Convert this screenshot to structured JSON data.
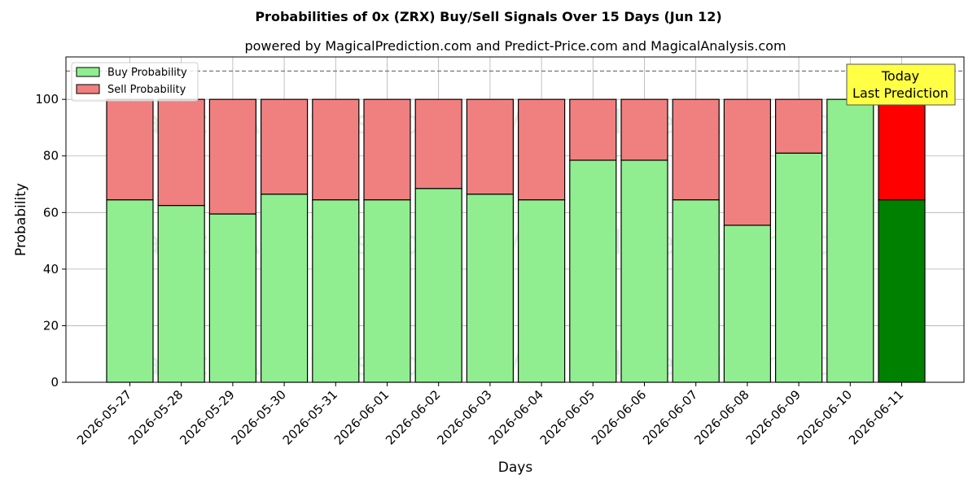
{
  "chart_data": {
    "type": "bar",
    "stacked": true,
    "title": "Probabilities of 0x (ZRX) Buy/Sell Signals Over 15 Days (Jun 12)",
    "subtitle": "powered by MagicalPrediction.com and Predict-Price.com and MagicalAnalysis.com",
    "xlabel": "Days",
    "ylabel": "Probability",
    "ylim": [
      0,
      115
    ],
    "yticks": [
      0,
      20,
      40,
      60,
      80,
      100
    ],
    "grid": true,
    "legend_position": "top-left",
    "reference_line": 110,
    "categories": [
      "2026-05-27",
      "2026-05-28",
      "2026-05-29",
      "2026-05-30",
      "2026-05-31",
      "2026-06-01",
      "2026-06-02",
      "2026-06-03",
      "2026-06-04",
      "2026-06-05",
      "2026-06-06",
      "2026-06-07",
      "2026-06-08",
      "2026-06-09",
      "2026-06-10",
      "2026-06-11"
    ],
    "series": [
      {
        "name": "Buy Probability",
        "color": "#90ee90",
        "values": [
          64.5,
          62.5,
          59.5,
          66.5,
          64.5,
          64.5,
          68.5,
          66.5,
          64.5,
          78.5,
          78.5,
          64.5,
          55.5,
          81,
          100,
          64.5
        ]
      },
      {
        "name": "Sell Probability",
        "color": "#f08080",
        "values": [
          35.5,
          37.5,
          40.5,
          33.5,
          35.5,
          35.5,
          31.5,
          33.5,
          35.5,
          21.5,
          21.5,
          35.5,
          44.5,
          19,
          0,
          35.5
        ]
      }
    ],
    "highlight": {
      "index": 15,
      "buy_color": "#008000",
      "sell_color": "#ff0000"
    },
    "annotation": {
      "line1": "Today",
      "line2": "Last Prediction",
      "background": "#ffff44"
    },
    "watermarks": [
      "MagicalAnalysis.com",
      "MagicalPrediction.com"
    ]
  }
}
